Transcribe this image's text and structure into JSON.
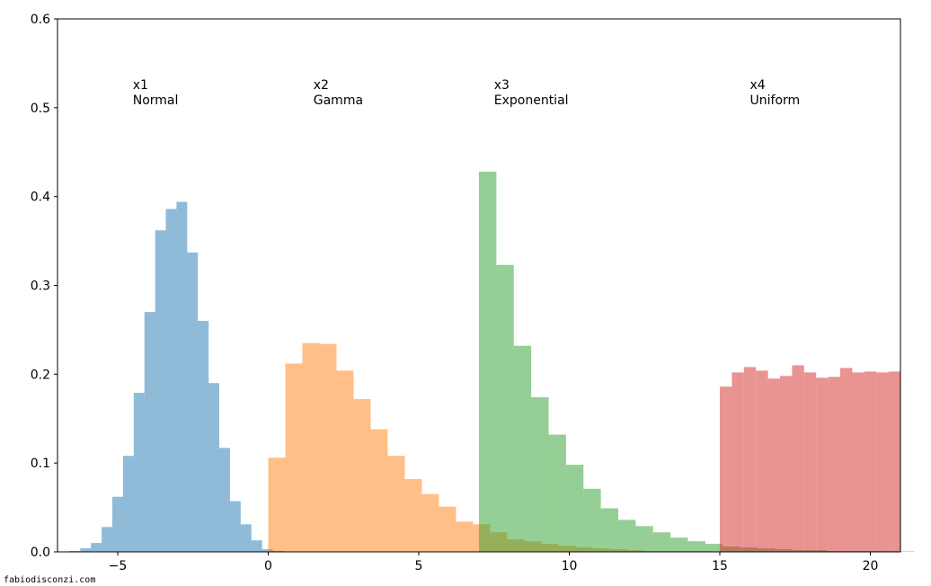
{
  "watermark": "fabiodisconzi.com",
  "chart_data": {
    "type": "histogram",
    "xlim": [
      -7,
      21
    ],
    "ylim": [
      0,
      0.6
    ],
    "xticks": [
      -5,
      0,
      5,
      10,
      15,
      20
    ],
    "xtick_labels": [
      "−5",
      "0",
      "5",
      "10",
      "15",
      "20"
    ],
    "yticks": [
      0.0,
      0.1,
      0.2,
      0.3,
      0.4,
      0.5,
      0.6
    ],
    "ytick_labels": [
      "0.0",
      "0.1",
      "0.2",
      "0.3",
      "0.4",
      "0.5",
      "0.6"
    ],
    "grid": false,
    "series": [
      {
        "name": "x1",
        "label": "Normal",
        "color": "#1f77b4",
        "opacity": 0.5,
        "bin_start": -6.6,
        "bin_width": 0.3553,
        "values": [
          0.001,
          0.004,
          0.01,
          0.028,
          0.062,
          0.108,
          0.179,
          0.27,
          0.362,
          0.386,
          0.394,
          0.337,
          0.26,
          0.19,
          0.117,
          0.057,
          0.031,
          0.013,
          0.003,
          0.001
        ]
      },
      {
        "name": "x2",
        "label": "Gamma",
        "color": "#ff7f0e",
        "opacity": 0.5,
        "bin_start": 0,
        "bin_width": 0.567,
        "values": [
          0.106,
          0.212,
          0.235,
          0.234,
          0.204,
          0.172,
          0.138,
          0.108,
          0.082,
          0.065,
          0.051,
          0.034,
          0.031,
          0.022,
          0.014,
          0.012,
          0.009,
          0.007,
          0.005,
          0.004,
          0.003,
          0.002,
          0.001,
          0.001,
          0.001,
          0.001,
          0.0005,
          0.0005,
          0.0003,
          0.0003
        ]
      },
      {
        "name": "x3",
        "label": "Exponential",
        "color": "#2ca02c",
        "opacity": 0.5,
        "bin_start": 7,
        "bin_width": 0.5783,
        "values": [
          0.428,
          0.323,
          0.232,
          0.174,
          0.132,
          0.098,
          0.071,
          0.049,
          0.036,
          0.029,
          0.022,
          0.016,
          0.012,
          0.009,
          0.006,
          0.005,
          0.004,
          0.003,
          0.002,
          0.002,
          0.001,
          0.001,
          0.001,
          0.0008,
          0.0006
        ]
      },
      {
        "name": "x4",
        "label": "Uniform",
        "color": "#d62728",
        "opacity": 0.5,
        "bin_start": 15,
        "bin_width": 0.4,
        "values": [
          0.186,
          0.202,
          0.208,
          0.204,
          0.195,
          0.198,
          0.21,
          0.202,
          0.196,
          0.197,
          0.207,
          0.202,
          0.203,
          0.202,
          0.203
        ]
      }
    ],
    "annotations": [
      {
        "x": -4.5,
        "y": 0.53,
        "lines": [
          "x1",
          "Normal"
        ]
      },
      {
        "x": 1.5,
        "y": 0.53,
        "lines": [
          "x2",
          "Gamma"
        ]
      },
      {
        "x": 7.5,
        "y": 0.53,
        "lines": [
          "x3",
          "Exponential"
        ]
      },
      {
        "x": 16,
        "y": 0.53,
        "lines": [
          "x4",
          "Uniform"
        ]
      }
    ]
  }
}
